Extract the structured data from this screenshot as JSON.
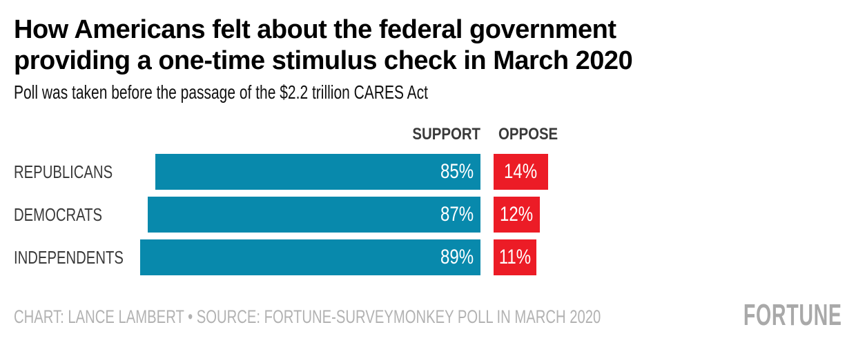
{
  "header": {
    "title_line1": "How Americans felt about the federal government",
    "title_line2": "providing a one-time stimulus check in March 2020",
    "subtitle": "Poll was taken before the passage of the $2.2 trillion CARES Act"
  },
  "chart_data": {
    "type": "bar",
    "orientation": "horizontal",
    "title": "How Americans felt about the federal government providing a one-time stimulus check in March 2020",
    "subtitle": "Poll was taken before the passage of the $2.2 trillion CARES Act",
    "categories": [
      "REPUBLICANS",
      "DEMOCRATS",
      "INDEPENDENTS"
    ],
    "series": [
      {
        "name": "SUPPORT",
        "color": "#0889ac",
        "values": [
          85,
          87,
          89
        ]
      },
      {
        "name": "OPPOSE",
        "color": "#ec1c26",
        "values": [
          14,
          12,
          11
        ]
      }
    ],
    "value_suffix": "%",
    "xlim": [
      0,
      100
    ],
    "layout": {
      "grid": "off",
      "axes": "none",
      "column_headers_position": "above bar columns",
      "support_bars": "right-aligned to a common edge, grow leftward",
      "oppose_bars": "left-aligned to a common edge, grow rightward",
      "value_labels": "white text inside bars"
    }
  },
  "footer": {
    "credit": "CHART: LANCE LAMBERT • SOURCE: FORTUNE-SURVEYMONKEY POLL IN MARCH 2020",
    "logo_text": "FORTUNE"
  },
  "colors": {
    "background": "#ffffff",
    "title": "#000000",
    "subtitle": "#111111",
    "category_label": "#3a3a3a",
    "column_header": "#3a3a3a",
    "bar_value_text": "#ffffff",
    "support": "#0889ac",
    "oppose": "#ec1c26",
    "footer_text": "#b2b2b2",
    "logo": "#a9a9a9"
  }
}
